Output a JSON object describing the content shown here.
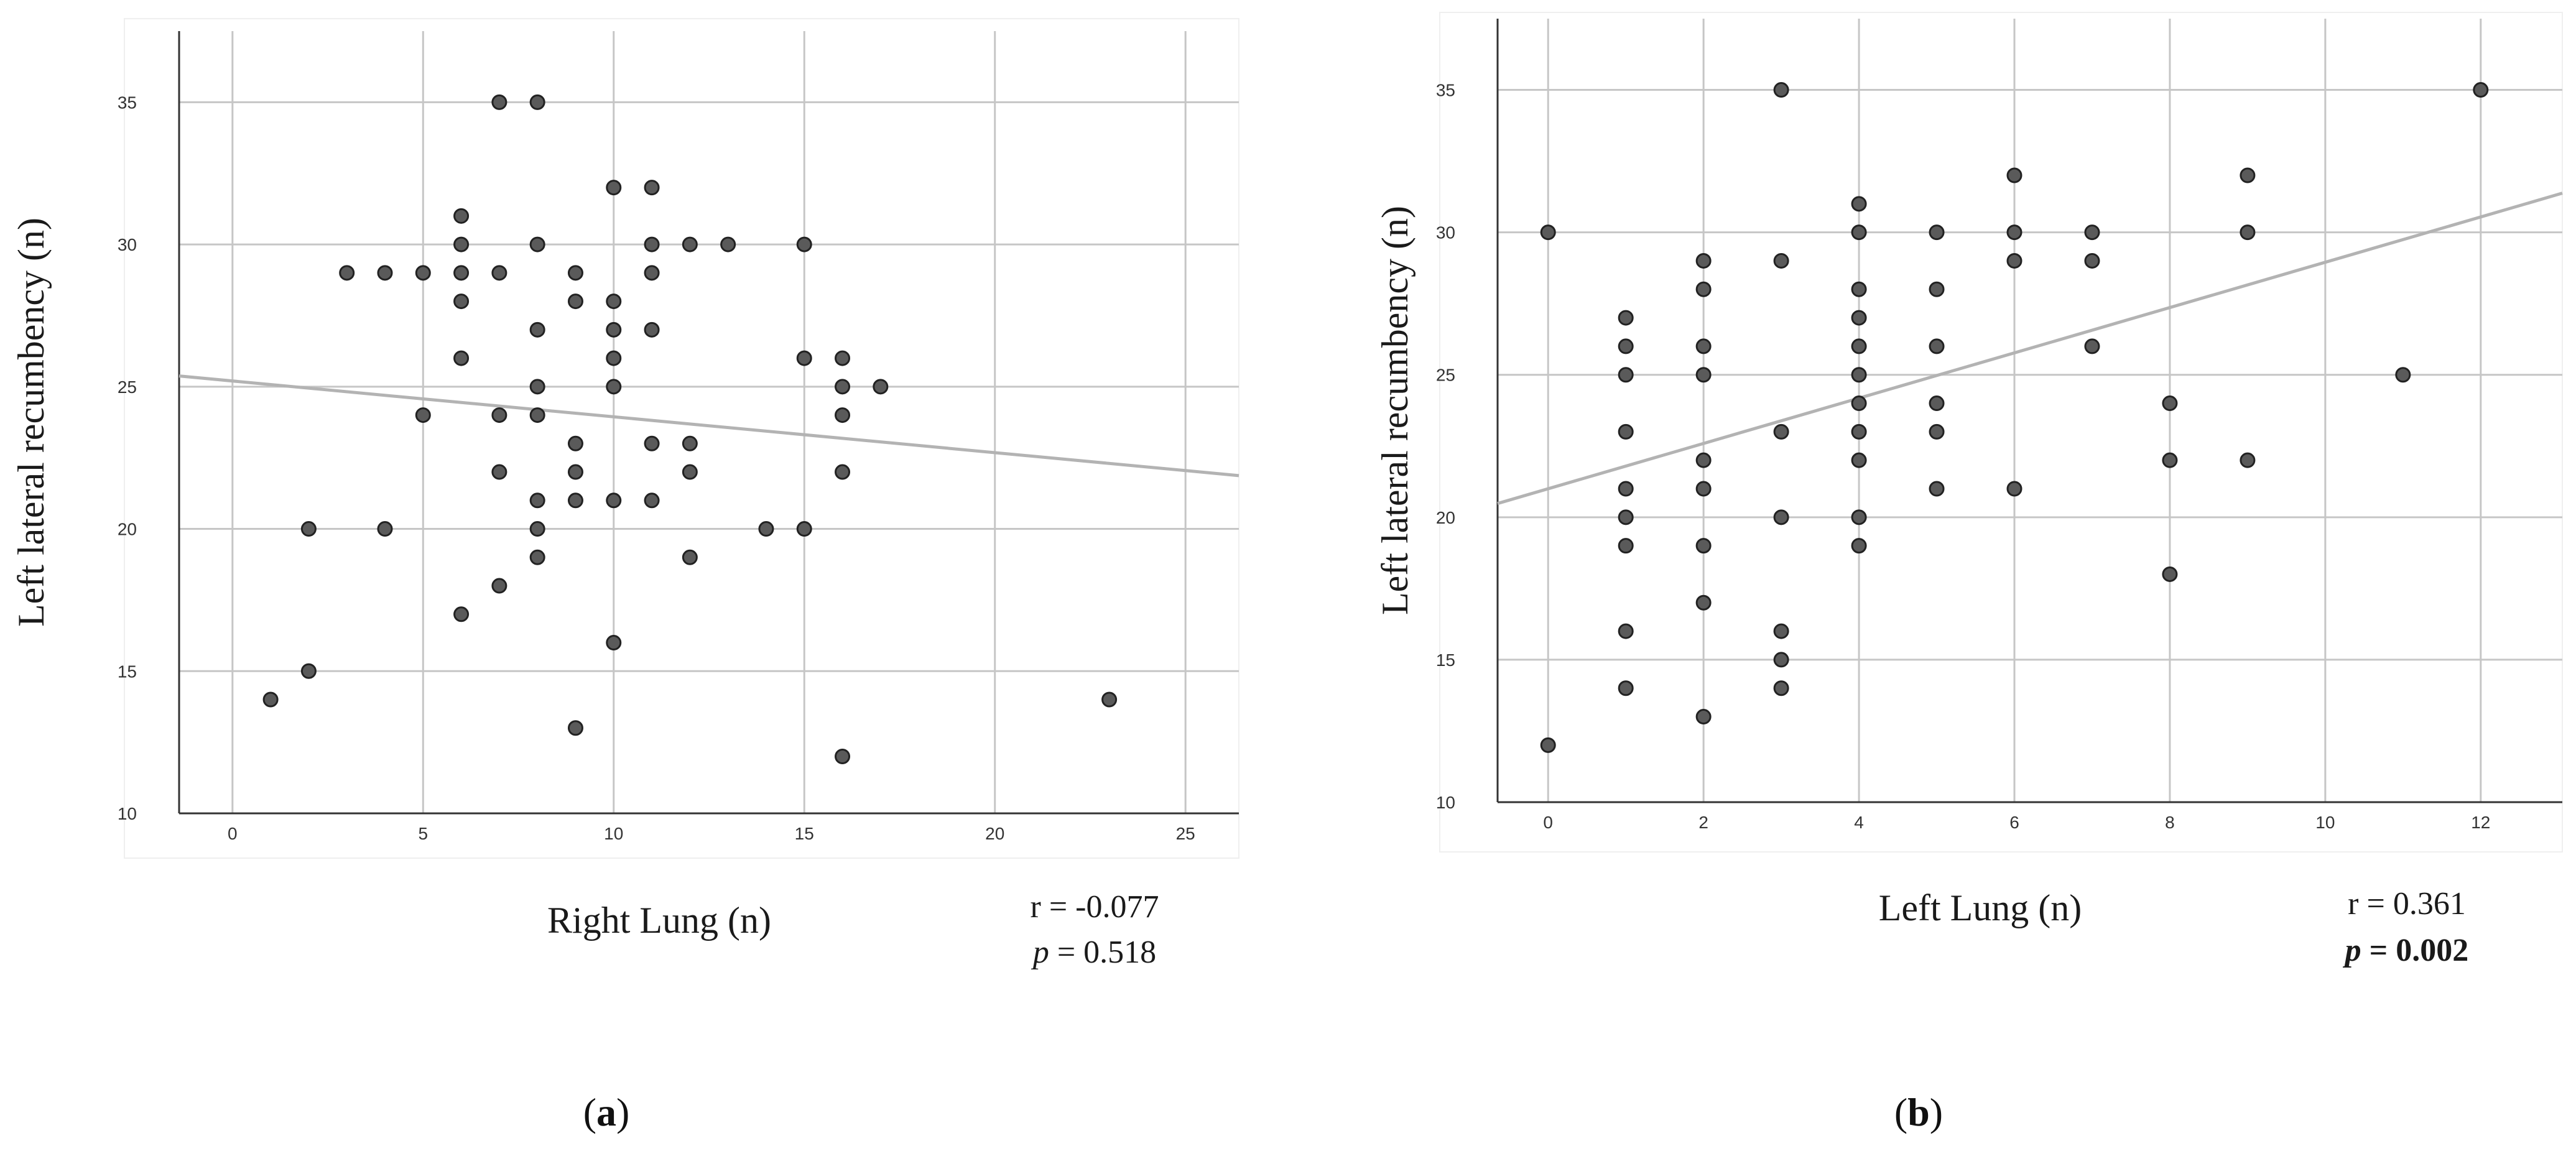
{
  "chart_data": [
    {
      "type": "scatter",
      "panel_label": "a",
      "xlabel": "Right Lung (n)",
      "ylabel": "Left lateral recumbency (n)",
      "xlim": [
        -1.4,
        26.4
      ],
      "ylim": [
        10,
        37.5
      ],
      "xticks": [
        0,
        5,
        10,
        15,
        20,
        25
      ],
      "yticks": [
        10,
        15,
        20,
        25,
        30,
        35
      ],
      "grid": true,
      "fit_line": {
        "intercept": 25.2,
        "slope": -0.126
      },
      "stats": {
        "r_text": "r = -0.077",
        "p_symbol": "p",
        "p_value": " = 0.518",
        "p_bold": false
      },
      "points": [
        [
          1,
          14
        ],
        [
          2,
          15
        ],
        [
          2,
          20
        ],
        [
          3,
          29
        ],
        [
          4,
          29
        ],
        [
          4,
          20
        ],
        [
          5,
          29
        ],
        [
          5,
          24
        ],
        [
          6,
          31
        ],
        [
          6,
          30
        ],
        [
          6,
          29
        ],
        [
          6,
          28
        ],
        [
          6,
          26
        ],
        [
          6,
          17
        ],
        [
          7,
          35
        ],
        [
          7,
          29
        ],
        [
          7,
          24
        ],
        [
          7,
          22
        ],
        [
          7,
          18
        ],
        [
          8,
          35
        ],
        [
          8,
          30
        ],
        [
          8,
          27
        ],
        [
          8,
          25
        ],
        [
          8,
          24
        ],
        [
          8,
          21
        ],
        [
          8,
          20
        ],
        [
          8,
          19
        ],
        [
          9,
          29
        ],
        [
          9,
          28
        ],
        [
          9,
          23
        ],
        [
          9,
          22
        ],
        [
          9,
          21
        ],
        [
          9,
          13
        ],
        [
          10,
          32
        ],
        [
          10,
          28
        ],
        [
          10,
          27
        ],
        [
          10,
          26
        ],
        [
          10,
          25
        ],
        [
          10,
          21
        ],
        [
          10,
          16
        ],
        [
          11,
          32
        ],
        [
          11,
          30
        ],
        [
          11,
          29
        ],
        [
          11,
          27
        ],
        [
          11,
          23
        ],
        [
          11,
          21
        ],
        [
          12,
          30
        ],
        [
          12,
          23
        ],
        [
          12,
          22
        ],
        [
          12,
          19
        ],
        [
          13,
          30
        ],
        [
          14,
          20
        ],
        [
          15,
          30
        ],
        [
          15,
          26
        ],
        [
          15,
          20
        ],
        [
          16,
          26
        ],
        [
          16,
          25
        ],
        [
          16,
          24
        ],
        [
          16,
          22
        ],
        [
          16,
          12
        ],
        [
          17,
          25
        ],
        [
          23,
          14
        ]
      ]
    },
    {
      "type": "scatter",
      "panel_label": "b",
      "xlabel": "Left Lung (n)",
      "ylabel": "Left lateral recumbency (n)",
      "xlim": [
        -0.65,
        13.05
      ],
      "ylim": [
        10,
        37.5
      ],
      "xticks": [
        0,
        2,
        4,
        6,
        8,
        10,
        12
      ],
      "yticks": [
        10,
        15,
        20,
        25,
        30,
        35
      ],
      "grid": true,
      "fit_line": {
        "intercept": 21.0,
        "slope": 0.795
      },
      "stats": {
        "r_text": "r = 0.361",
        "p_symbol": "p",
        "p_value": " = 0.002",
        "p_bold": true
      },
      "points": [
        [
          0,
          30
        ],
        [
          0,
          12
        ],
        [
          1,
          27
        ],
        [
          1,
          26
        ],
        [
          1,
          25
        ],
        [
          1,
          23
        ],
        [
          1,
          21
        ],
        [
          1,
          20
        ],
        [
          1,
          19
        ],
        [
          1,
          16
        ],
        [
          1,
          14
        ],
        [
          2,
          29
        ],
        [
          2,
          28
        ],
        [
          2,
          26
        ],
        [
          2,
          25
        ],
        [
          2,
          22
        ],
        [
          2,
          21
        ],
        [
          2,
          19
        ],
        [
          2,
          17
        ],
        [
          2,
          13
        ],
        [
          3,
          35
        ],
        [
          3,
          29
        ],
        [
          3,
          23
        ],
        [
          3,
          20
        ],
        [
          3,
          16
        ],
        [
          3,
          15
        ],
        [
          3,
          14
        ],
        [
          4,
          31
        ],
        [
          4,
          30
        ],
        [
          4,
          28
        ],
        [
          4,
          27
        ],
        [
          4,
          26
        ],
        [
          4,
          25
        ],
        [
          4,
          24
        ],
        [
          4,
          23
        ],
        [
          4,
          22
        ],
        [
          4,
          20
        ],
        [
          4,
          19
        ],
        [
          5,
          30
        ],
        [
          5,
          28
        ],
        [
          5,
          26
        ],
        [
          5,
          24
        ],
        [
          5,
          23
        ],
        [
          5,
          21
        ],
        [
          6,
          32
        ],
        [
          6,
          30
        ],
        [
          6,
          29
        ],
        [
          6,
          21
        ],
        [
          7,
          30
        ],
        [
          7,
          29
        ],
        [
          7,
          26
        ],
        [
          8,
          24
        ],
        [
          8,
          22
        ],
        [
          8,
          18
        ],
        [
          9,
          32
        ],
        [
          9,
          30
        ],
        [
          9,
          22
        ],
        [
          11,
          25
        ],
        [
          12,
          35
        ]
      ]
    }
  ]
}
